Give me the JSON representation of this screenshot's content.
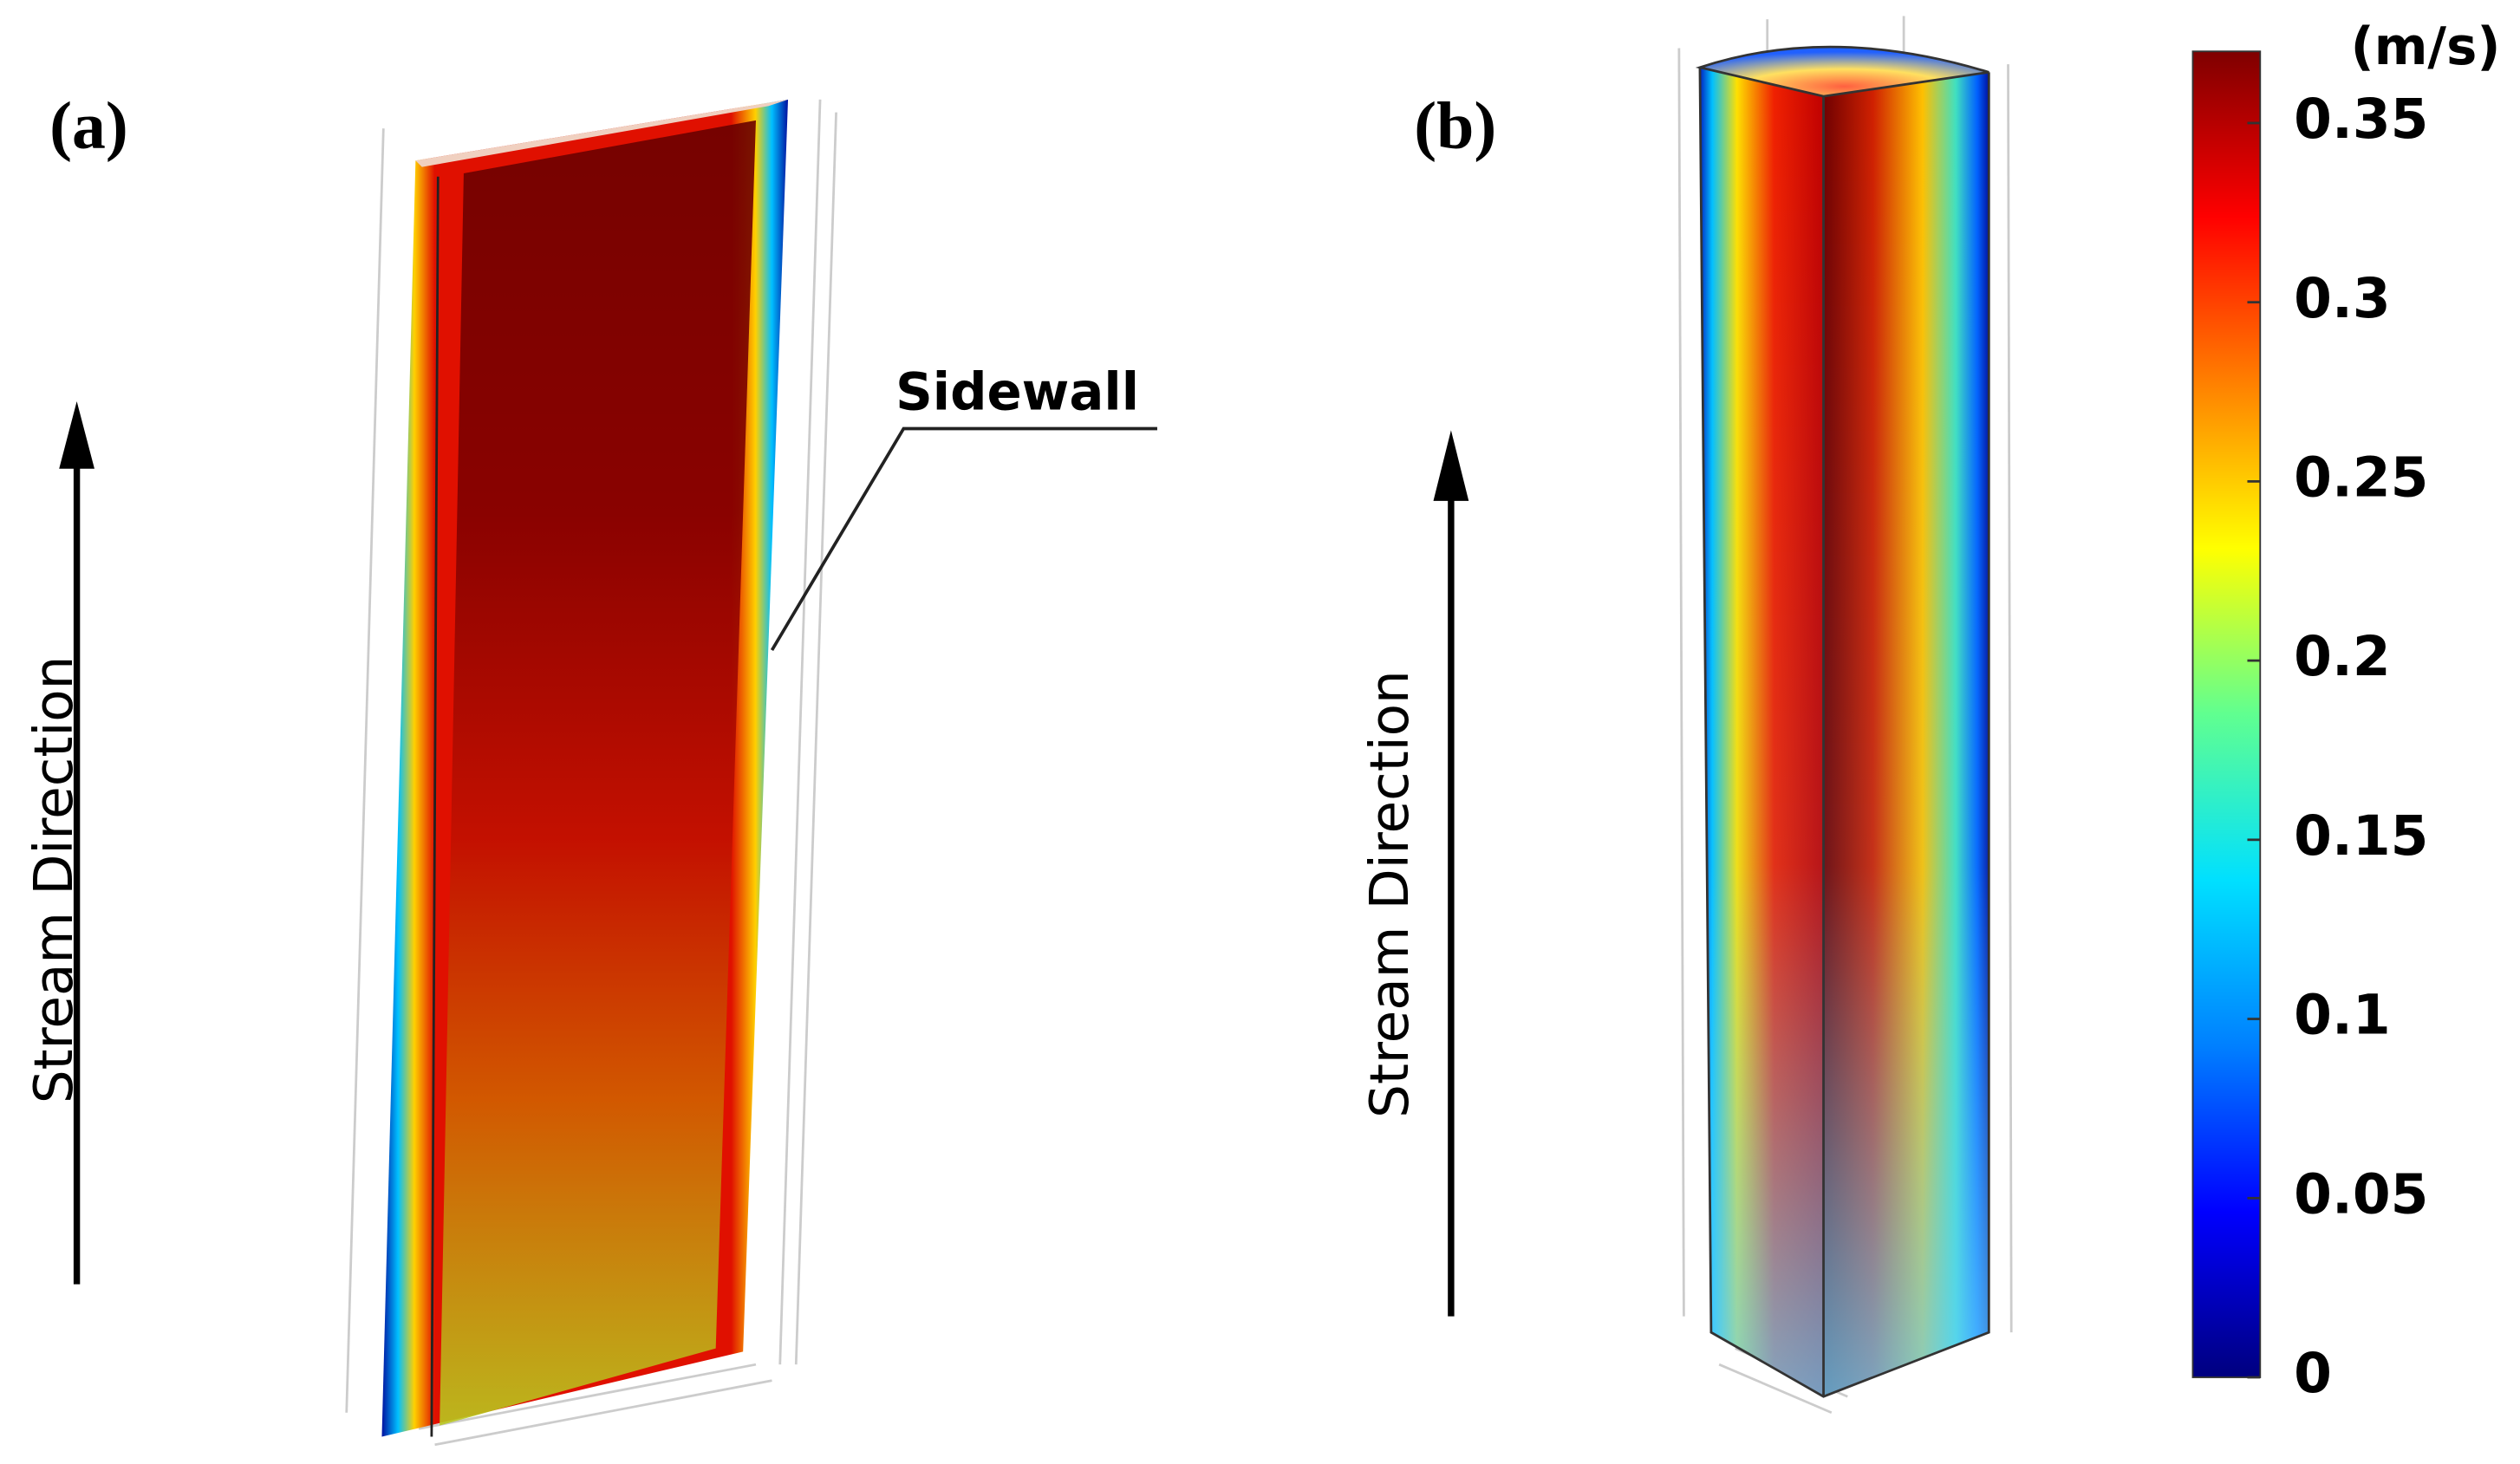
{
  "panels": [
    {
      "label": "(a)",
      "arrow_label": "Stream Direction",
      "annotation": "Sidewall"
    },
    {
      "label": "(b)",
      "arrow_label": "Stream Direction"
    }
  ],
  "colorbar": {
    "unit": "(m/s)",
    "lim": [
      0,
      0.37
    ],
    "ticks": [
      0,
      0.05,
      0.1,
      0.15,
      0.2,
      0.25,
      0.3,
      0.35
    ],
    "colors": [
      "#00007f",
      "#0000ff",
      "#0080ff",
      "#00e0ff",
      "#60ff90",
      "#ffff00",
      "#ff8000",
      "#ff0000",
      "#7f0000"
    ]
  }
}
